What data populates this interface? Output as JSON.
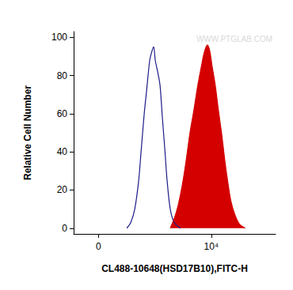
{
  "chart_data": {
    "type": "line",
    "xlabel": "CL488-10648(HSD17B10),FITC-H",
    "ylabel": "Relative Cell Number",
    "annotations": [
      "WWW.PTGLAB.COM"
    ],
    "xlim": [
      -2200,
      15700
    ],
    "xticks": [
      0,
      {
        "value": 10000,
        "label": "10⁴"
      }
    ],
    "ylim": [
      -3,
      103
    ],
    "yticks": [
      0,
      20,
      40,
      60,
      80,
      100
    ],
    "grid": false,
    "series": [
      {
        "type": "line",
        "color": "#1c1c8a",
        "x": [
          2517,
          2867,
          3217,
          3566,
          3776,
          4056,
          4266,
          4545,
          4755,
          4895,
          5035,
          5245,
          5455,
          5664,
          5874,
          6084,
          6364,
          6713,
          7273
        ],
        "values": [
          0,
          3,
          10,
          25,
          40,
          60,
          72,
          88,
          93,
          95,
          88,
          82,
          75,
          58,
          42,
          25,
          10,
          3,
          0
        ]
      },
      {
        "type": "area",
        "color": "#d40000",
        "x": [
          6364,
          6713,
          7063,
          7413,
          7762,
          8112,
          8462,
          8811,
          9161,
          9371,
          9650,
          9860,
          10070,
          10350,
          10629,
          10909,
          11189,
          11469,
          11748,
          12098,
          12517,
          13007
        ],
        "values": [
          0,
          5,
          12,
          22,
          35,
          50,
          62,
          75,
          86,
          92,
          96,
          93,
          85,
          75,
          62,
          50,
          36,
          24,
          14,
          7,
          2,
          0
        ]
      }
    ]
  }
}
